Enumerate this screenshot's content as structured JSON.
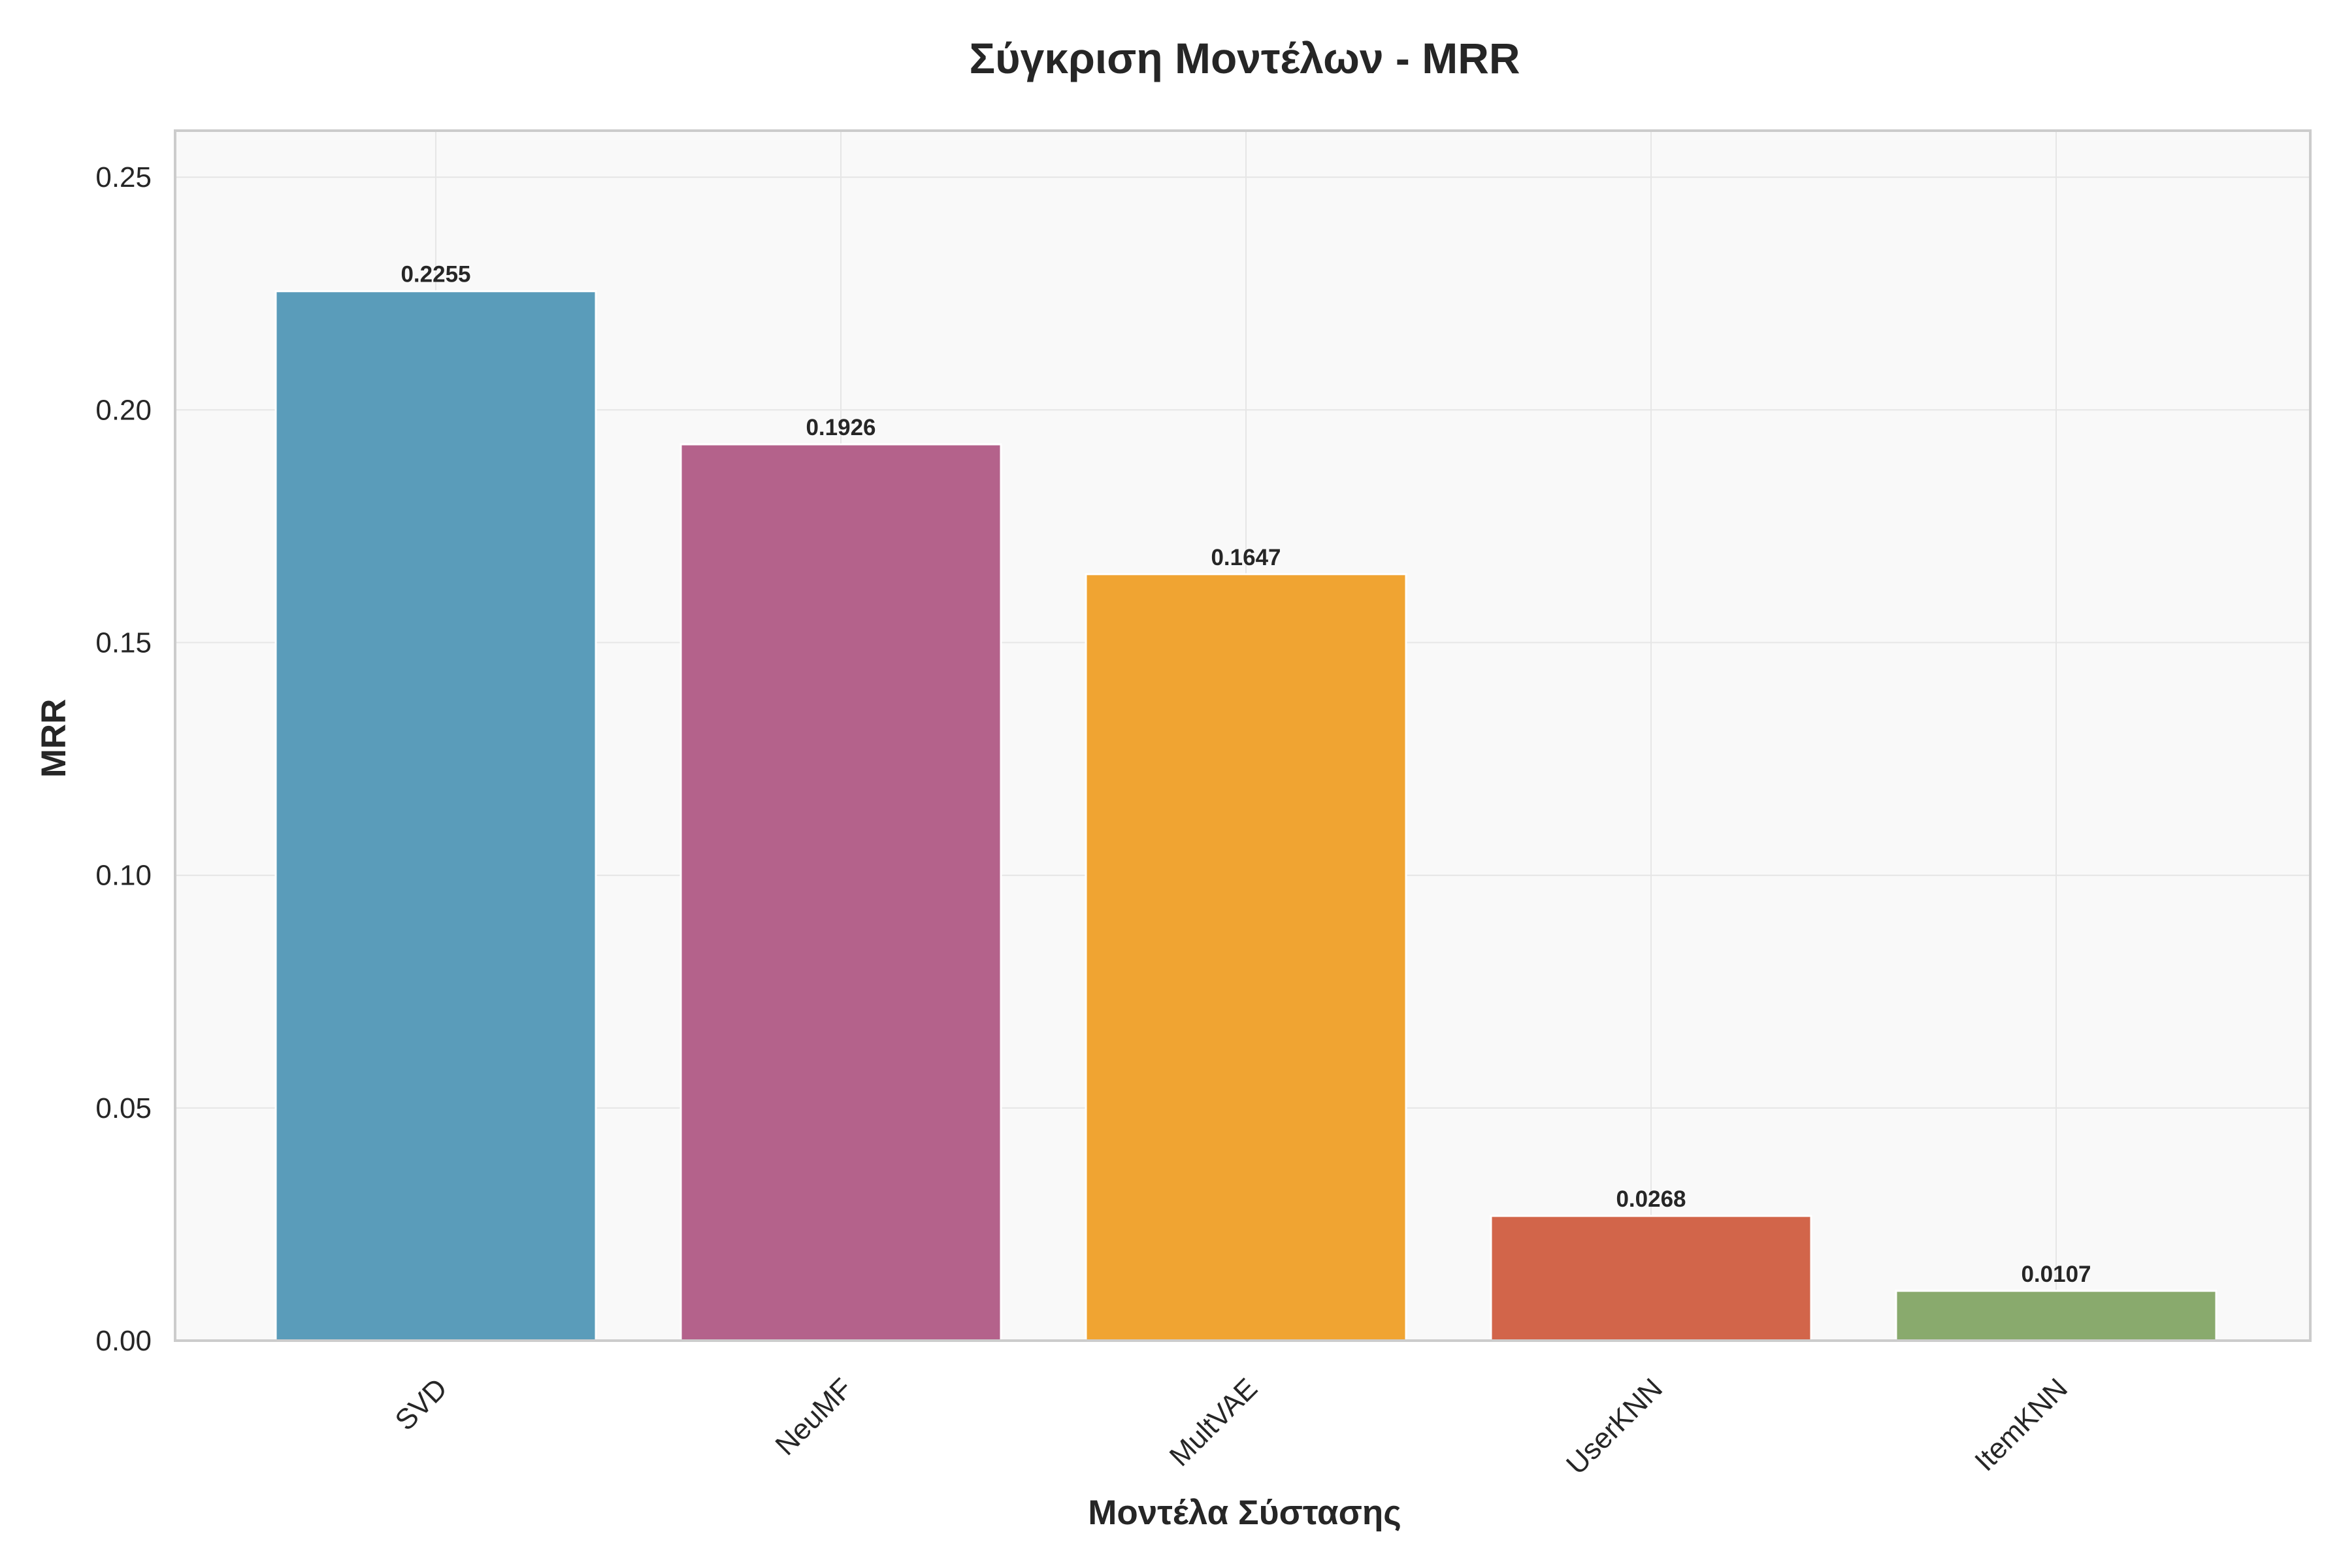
{
  "chart_data": {
    "type": "bar",
    "title": "Σύγκριση Μοντέλων - MRR",
    "xlabel": "Μοντέλα Σύστασης",
    "ylabel": "MRR",
    "categories": [
      "SVD",
      "NeuMF",
      "MultVAE",
      "UserKNN",
      "ItemKNN"
    ],
    "values": [
      0.2255,
      0.1926,
      0.1647,
      0.0268,
      0.0107
    ],
    "value_labels": [
      "0.2255",
      "0.1926",
      "0.1647",
      "0.0268",
      "0.0107"
    ],
    "colors": [
      "#5a9cba",
      "#b4628b",
      "#f0a432",
      "#d2654a",
      "#89aa6d"
    ],
    "ylim": [
      0,
      0.26
    ],
    "yticks": [
      0,
      0.05,
      0.1,
      0.15,
      0.2,
      0.25
    ],
    "ytick_labels": [
      "0.00",
      "0.05",
      "0.10",
      "0.15",
      "0.20",
      "0.25"
    ],
    "grid": true,
    "plot_background": "#f9f9f9",
    "xtick_rotation": 45
  }
}
